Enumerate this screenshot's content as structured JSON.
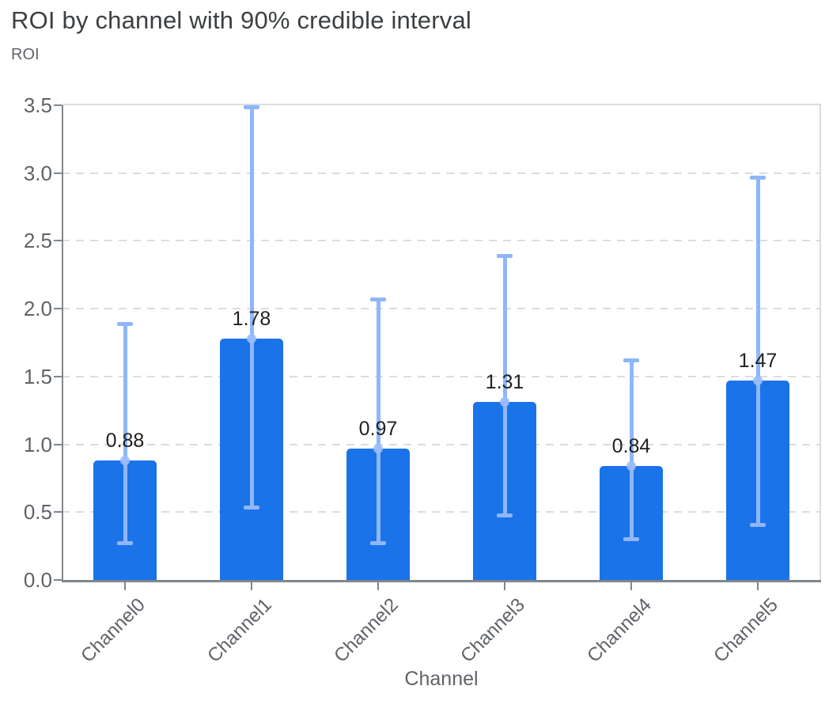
{
  "page": {
    "title": "ROI by channel with 90% credible interval"
  },
  "chart_data": {
    "type": "bar",
    "title": "ROI by channel with 90% credible interval",
    "xlabel": "Channel",
    "ylabel": "ROI",
    "categories": [
      "Channel0",
      "Channel1",
      "Channel2",
      "Channel3",
      "Channel4",
      "Channel5"
    ],
    "values": [
      0.88,
      1.78,
      0.97,
      1.31,
      0.84,
      1.47
    ],
    "value_labels": [
      "0.88",
      "1.78",
      "0.97",
      "1.31",
      "0.84",
      "1.47"
    ],
    "error_low": [
      0.27,
      0.53,
      0.27,
      0.47,
      0.3,
      0.4
    ],
    "error_high": [
      1.89,
      3.49,
      2.07,
      2.39,
      1.62,
      2.97
    ],
    "interval": "90% credible interval",
    "ylim": [
      0,
      3.5
    ],
    "yticks": [
      0,
      0.5,
      1.0,
      1.5,
      2.0,
      2.5,
      3.0,
      3.5
    ],
    "ytick_labels": [
      "0.0",
      "0.5",
      "1.0",
      "1.5",
      "2.0",
      "2.5",
      "3.0",
      "3.5"
    ],
    "grid": true,
    "legend_position": "none",
    "colors": {
      "bar": "#1a73e8",
      "error_bar": "#8fb6f8",
      "mean_marker": "#9bbcf9",
      "grid": "#dadce0",
      "axis": "#80868b",
      "tick_text": "#5f6368",
      "title_text": "#3c4043",
      "value_text": "#202124"
    }
  }
}
